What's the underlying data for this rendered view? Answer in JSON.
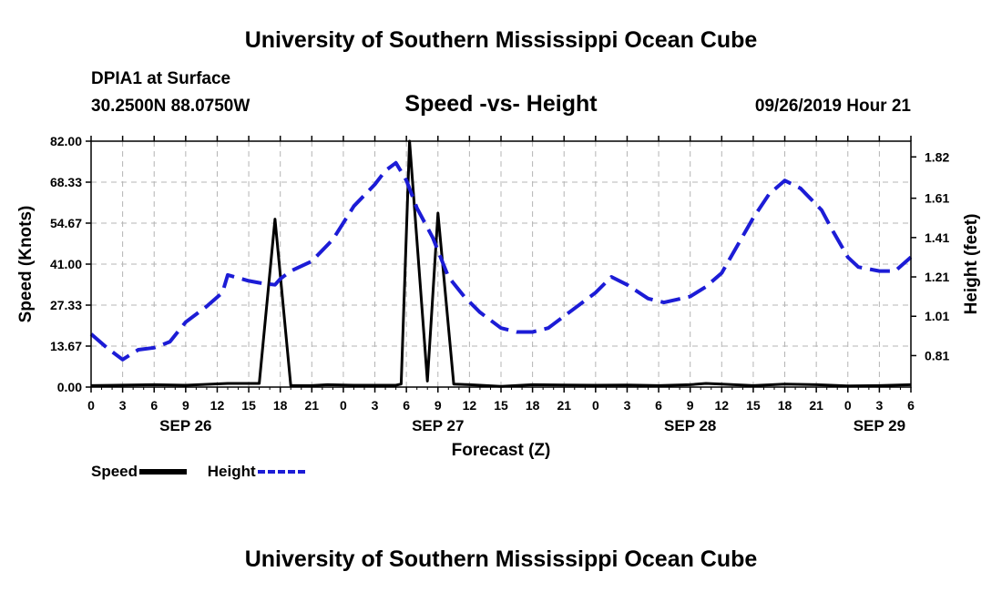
{
  "header": {
    "title": "University of Southern Mississippi Ocean Cube",
    "station_name": "DPIA1 at Surface",
    "station_coords": "30.2500N 88.0750W",
    "chart_title": "Speed -vs- Height",
    "datetime": "09/26/2019 Hour 21"
  },
  "footer": {
    "title": "University of Southern Mississippi Ocean Cube"
  },
  "legend": {
    "speed_label": "Speed",
    "height_label": "Height"
  },
  "colors": {
    "speed": "#000000",
    "height": "#1c1cd6",
    "grid": "#b4b4b4"
  },
  "chart_data": {
    "type": "line",
    "title": "Speed -vs- Height",
    "xlabel": "Forecast (Z)",
    "ylabel": "Speed (Knots)",
    "y2label": "Height (feet)",
    "x_unit": "hours from 0Z SEP 26",
    "xlim": [
      0,
      78
    ],
    "ylim": [
      0,
      82
    ],
    "y2lim": [
      0.65,
      1.9
    ],
    "x_ticks": [
      0,
      3,
      6,
      9,
      12,
      15,
      18,
      21,
      24,
      27,
      30,
      33,
      36,
      39,
      42,
      45,
      48,
      51,
      54,
      57,
      60,
      63,
      66,
      69,
      72,
      75,
      78
    ],
    "x_tick_labels": [
      "0",
      "3",
      "6",
      "9",
      "12",
      "15",
      "18",
      "21",
      "0",
      "3",
      "6",
      "9",
      "12",
      "15",
      "18",
      "21",
      "0",
      "3",
      "6",
      "9",
      "12",
      "15",
      "18",
      "21",
      "0",
      "3",
      "6"
    ],
    "y_ticks": [
      0,
      13.67,
      27.33,
      41,
      54.67,
      68.33,
      82
    ],
    "y_tick_labels": [
      "0.00",
      "13.67",
      "27.33",
      "41.00",
      "54.67",
      "68.33",
      "82.00"
    ],
    "y2_ticks": [
      0.81,
      1.01,
      1.21,
      1.41,
      1.61,
      1.82
    ],
    "y2_tick_labels": [
      "0.81",
      "1.01",
      "1.21",
      "1.41",
      "1.61",
      "1.82"
    ],
    "date_labels": [
      {
        "x": 9,
        "label": "SEP 26"
      },
      {
        "x": 33,
        "label": "SEP 27"
      },
      {
        "x": 57,
        "label": "SEP 28"
      },
      {
        "x": 75,
        "label": "SEP 29"
      }
    ],
    "grid": true,
    "legend_position": "bottom-left",
    "series": [
      {
        "name": "Speed",
        "axis": "left",
        "style": "solid",
        "points": [
          [
            0,
            0.5
          ],
          [
            6,
            0.8
          ],
          [
            9,
            0.6
          ],
          [
            13,
            1.2
          ],
          [
            16,
            1.2
          ],
          [
            17.5,
            56
          ],
          [
            19,
            0.5
          ],
          [
            21,
            0.5
          ],
          [
            22.5,
            0.8
          ],
          [
            25,
            0.6
          ],
          [
            29,
            0.6
          ],
          [
            29.5,
            1.0
          ],
          [
            30.3,
            82
          ],
          [
            32,
            2
          ],
          [
            33,
            58
          ],
          [
            34.5,
            1.0
          ],
          [
            36,
            0.8
          ],
          [
            39,
            0.2
          ],
          [
            42,
            0.8
          ],
          [
            45,
            0.7
          ],
          [
            48,
            0.6
          ],
          [
            51,
            0.7
          ],
          [
            54,
            0.5
          ],
          [
            57,
            0.8
          ],
          [
            58.5,
            1.2
          ],
          [
            60,
            1.0
          ],
          [
            63,
            0.5
          ],
          [
            66,
            1.0
          ],
          [
            69,
            0.8
          ],
          [
            72,
            0.4
          ],
          [
            75,
            0.5
          ],
          [
            78,
            0.8
          ]
        ]
      },
      {
        "name": "Height",
        "axis": "right",
        "style": "dashed",
        "points": [
          [
            0,
            0.92
          ],
          [
            1.5,
            0.85
          ],
          [
            3,
            0.79
          ],
          [
            4.5,
            0.84
          ],
          [
            6,
            0.85
          ],
          [
            7.5,
            0.88
          ],
          [
            9,
            0.98
          ],
          [
            11,
            1.06
          ],
          [
            12.5,
            1.13
          ],
          [
            13,
            1.22
          ],
          [
            15,
            1.19
          ],
          [
            16,
            1.18
          ],
          [
            17.5,
            1.17
          ],
          [
            18,
            1.2
          ],
          [
            19,
            1.24
          ],
          [
            21,
            1.29
          ],
          [
            23,
            1.4
          ],
          [
            25,
            1.57
          ],
          [
            27,
            1.68
          ],
          [
            28,
            1.75
          ],
          [
            29,
            1.79
          ],
          [
            30,
            1.7
          ],
          [
            31,
            1.56
          ],
          [
            32.5,
            1.41
          ],
          [
            34,
            1.21
          ],
          [
            35.5,
            1.11
          ],
          [
            37,
            1.03
          ],
          [
            39,
            0.95
          ],
          [
            40.5,
            0.93
          ],
          [
            42,
            0.93
          ],
          [
            43.5,
            0.95
          ],
          [
            45,
            1.01
          ],
          [
            46.5,
            1.07
          ],
          [
            48,
            1.13
          ],
          [
            49.5,
            1.21
          ],
          [
            51,
            1.17
          ],
          [
            53,
            1.1
          ],
          [
            54.5,
            1.08
          ],
          [
            57,
            1.11
          ],
          [
            58.5,
            1.16
          ],
          [
            60,
            1.23
          ],
          [
            61.5,
            1.37
          ],
          [
            63,
            1.51
          ],
          [
            64.5,
            1.63
          ],
          [
            66,
            1.7
          ],
          [
            67.5,
            1.66
          ],
          [
            69.5,
            1.55
          ],
          [
            70.5,
            1.45
          ],
          [
            72,
            1.31
          ],
          [
            73,
            1.26
          ],
          [
            75,
            1.24
          ],
          [
            76.5,
            1.24
          ],
          [
            78,
            1.31
          ]
        ]
      }
    ]
  }
}
